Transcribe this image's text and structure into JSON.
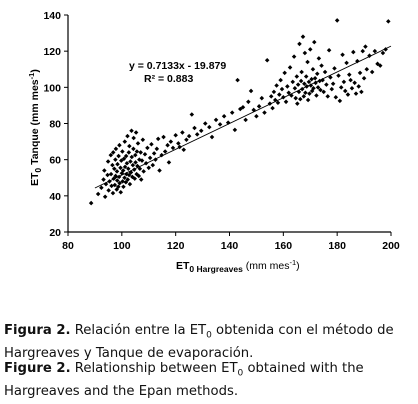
{
  "chart_data": {
    "type": "scatter",
    "title": "",
    "xlabel_main": "ET",
    "xlabel_sub": "0 Hargreaves",
    "xlabel_unit": "(mm mes",
    "xlabel_unit_sup": "-1",
    "xlabel_unit_close": ")",
    "ylabel_main": "ET",
    "ylabel_sub": "0",
    "ylabel_rest": " Tanque  (mm mes",
    "ylabel_sup": "-1",
    "ylabel_close": ")",
    "xlim": [
      80,
      200
    ],
    "ylim": [
      20,
      140
    ],
    "xticks": [
      "80",
      "100",
      "120",
      "140",
      "160",
      "180",
      "200"
    ],
    "yticks": [
      "20",
      "40",
      "60",
      "80",
      "100",
      "120",
      "140"
    ],
    "grid": false,
    "regression": {
      "slope": 0.7133,
      "intercept": -19.879,
      "equation": "y = 0.7133x - 19.879",
      "r2_label": "R² = 0.883",
      "x_range": [
        90,
        200
      ]
    },
    "x": [
      88.6,
      91.2,
      92.4,
      93.2,
      93.5,
      93.8,
      94.1,
      94.7,
      94.9,
      95.1,
      95.4,
      95.9,
      96.0,
      96.2,
      96.5,
      96.7,
      96.8,
      97.0,
      97.2,
      97.4,
      97.6,
      97.7,
      97.8,
      98.1,
      98.2,
      98.3,
      98.4,
      98.7,
      98.8,
      99.0,
      99.1,
      99.2,
      99.5,
      99.6,
      99.8,
      100.0,
      100.2,
      100.3,
      100.5,
      100.6,
      100.8,
      101.0,
      101.1,
      101.2,
      101.5,
      101.6,
      101.7,
      101.9,
      102.1,
      102.2,
      102.4,
      102.6,
      102.7,
      102.8,
      103.0,
      103.2,
      103.4,
      103.6,
      103.7,
      103.9,
      104.1,
      104.3,
      104.4,
      104.6,
      104.8,
      105.0,
      105.1,
      105.3,
      105.5,
      105.6,
      105.8,
      106.0,
      106.3,
      106.5,
      106.7,
      107.0,
      107.2,
      107.5,
      107.8,
      108.1,
      108.6,
      109.0,
      109.5,
      110.0,
      110.5,
      111.0,
      111.5,
      112.0,
      112.5,
      113.0,
      113.5,
      114.0,
      114.8,
      115.5,
      116.1,
      117.0,
      117.5,
      118.2,
      119.0,
      120.0,
      121.0,
      121.5,
      122.5,
      123.0,
      124.0,
      125.0,
      126.0,
      127.0,
      128.0,
      129.5,
      131.0,
      132.5,
      133.5,
      135.0,
      136.5,
      138.0,
      139.5,
      141.0,
      142.0,
      143.0,
      144.0,
      145.0,
      146.0,
      147.0,
      148.0,
      149.0,
      150.0,
      151.0,
      152.0,
      153.0,
      154.0,
      155.0,
      155.5,
      156.0,
      156.5,
      157.0,
      157.5,
      158.0,
      158.5,
      159.0,
      159.5,
      160.0,
      160.5,
      161.0,
      161.5,
      162.0,
      162.5,
      163.0,
      163.5,
      164.0,
      164.3,
      164.6,
      165.0,
      165.2,
      165.5,
      165.8,
      166.0,
      166.3,
      166.6,
      166.8,
      167.0,
      167.3,
      167.6,
      167.8,
      168.0,
      168.2,
      168.5,
      168.7,
      169.0,
      169.2,
      169.5,
      169.7,
      170.0,
      170.2,
      170.5,
      170.7,
      171.0,
      171.2,
      171.5,
      171.8,
      172.0,
      172.3,
      172.6,
      172.9,
      173.2,
      173.5,
      173.8,
      174.2,
      174.6,
      175.0,
      175.5,
      176.0,
      176.5,
      177.0,
      177.5,
      178.0,
      178.5,
      179.0,
      179.5,
      180.0,
      180.5,
      181.0,
      181.5,
      182.0,
      182.5,
      183.0,
      183.5,
      184.0,
      184.5,
      185.0,
      185.5,
      186.0,
      186.5,
      187.0,
      187.5,
      188.0,
      188.5,
      189.0,
      189.5,
      190.0,
      190.5,
      191.0,
      192.0,
      193.0,
      194.0,
      195.0,
      196.0,
      197.0,
      198.0,
      199.0
    ],
    "y": [
      36.0,
      41.0,
      44.5,
      49.0,
      54.0,
      39.5,
      46.5,
      51.5,
      59.0,
      43.0,
      48.0,
      62.5,
      52.0,
      45.5,
      57.0,
      41.5,
      64.0,
      49.5,
      55.0,
      46.0,
      60.0,
      51.0,
      66.0,
      43.5,
      53.5,
      48.5,
      57.5,
      45.0,
      62.0,
      50.5,
      68.0,
      47.0,
      55.5,
      42.0,
      59.5,
      52.5,
      64.5,
      48.0,
      54.0,
      45.0,
      60.5,
      50.0,
      70.0,
      56.0,
      47.5,
      62.0,
      52.0,
      58.0,
      73.0,
      49.0,
      55.0,
      64.0,
      51.5,
      67.5,
      46.5,
      59.0,
      53.0,
      76.0,
      61.5,
      50.5,
      57.0,
      66.0,
      72.0,
      54.5,
      49.5,
      62.5,
      58.5,
      75.0,
      52.0,
      64.5,
      56.5,
      69.0,
      51.0,
      60.0,
      55.0,
      64.0,
      49.0,
      59.5,
      71.0,
      53.5,
      63.0,
      58.0,
      66.5,
      55.5,
      61.0,
      68.5,
      57.0,
      63.5,
      60.0,
      66.0,
      71.5,
      54.0,
      62.5,
      72.5,
      64.5,
      68.0,
      58.5,
      70.0,
      66.5,
      73.5,
      69.0,
      67.0,
      75.0,
      65.5,
      71.0,
      73.0,
      85.0,
      77.5,
      74.0,
      76.0,
      80.0,
      78.0,
      72.5,
      82.0,
      79.5,
      84.0,
      80.5,
      86.0,
      76.5,
      104.0,
      88.0,
      89.0,
      82.0,
      92.0,
      98.0,
      87.5,
      84.0,
      89.5,
      94.0,
      86.0,
      115.0,
      91.0,
      95.0,
      88.5,
      97.5,
      93.0,
      101.0,
      91.5,
      96.0,
      104.0,
      99.0,
      94.5,
      108.0,
      92.0,
      100.5,
      97.0,
      111.0,
      95.5,
      103.0,
      117.0,
      99.5,
      94.0,
      106.0,
      91.0,
      101.5,
      97.5,
      124.0,
      93.5,
      103.5,
      108.5,
      99.0,
      128.0,
      95.0,
      102.0,
      119.0,
      97.0,
      106.0,
      100.5,
      114.0,
      93.0,
      103.0,
      96.5,
      121.0,
      101.0,
      104.5,
      98.0,
      110.0,
      99.5,
      125.0,
      105.0,
      102.5,
      95.5,
      107.5,
      100.0,
      116.0,
      103.5,
      98.5,
      112.0,
      104.0,
      97.5,
      108.5,
      101.5,
      95.0,
      120.5,
      105.5,
      99.0,
      102.0,
      110.5,
      94.5,
      137.0,
      106.5,
      92.5,
      100.0,
      118.0,
      103.0,
      98.0,
      113.5,
      96.0,
      107.0,
      104.0,
      99.5,
      119.5,
      102.5,
      96.5,
      114.5,
      100.5,
      108.0,
      97.5,
      120.0,
      105.0,
      122.5,
      110.0,
      117.5,
      108.5,
      120.0,
      113.0,
      112.0,
      119.0,
      121.0,
      136.5
    ],
    "plot_area_note": ""
  },
  "captions": {
    "es_label": "Figura 2.",
    "es_text": " Relación entre la ET",
    "es_sub": "0",
    "es_text2": " obtenida con el método de Hargreaves y Tanque de evaporación.",
    "en_label": "Figure 2.",
    "en_text": " Relationship between ET",
    "en_sub": "0",
    "en_text2": " obtained with the Hargreaves and the Epan methods."
  }
}
